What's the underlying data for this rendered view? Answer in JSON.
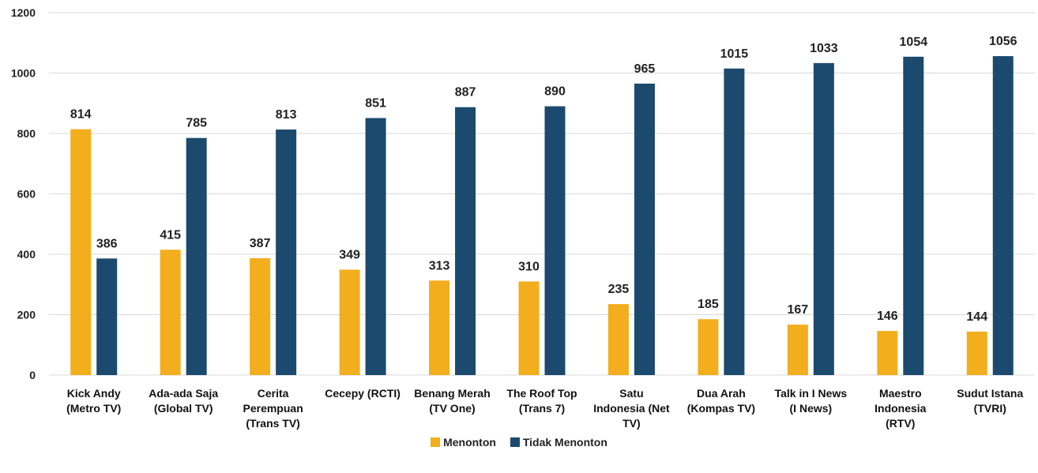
{
  "chart_data": {
    "type": "bar",
    "title": "",
    "xlabel": "",
    "ylabel": "",
    "ylim": [
      0,
      1200
    ],
    "yticks": [
      0,
      200,
      400,
      600,
      800,
      1000,
      1200
    ],
    "grid": true,
    "legend_position": "bottom",
    "categories": [
      [
        "Kick Andy",
        "(Metro TV)"
      ],
      [
        "Ada-ada Saja",
        "(Global TV)"
      ],
      [
        "Cerita",
        "Perempuan",
        "(Trans TV)"
      ],
      [
        "Cecepy (RCTI)"
      ],
      [
        "Benang Merah",
        "(TV One)"
      ],
      [
        "The Roof Top",
        "(Trans 7)"
      ],
      [
        "Satu",
        "Indonesia (Net",
        "TV)"
      ],
      [
        "Dua Arah",
        "(Kompas TV)"
      ],
      [
        "Talk in I News",
        "(I News)"
      ],
      [
        "Maestro",
        "Indonesia",
        "(RTV)"
      ],
      [
        "Sudut Istana",
        "(TVRI)"
      ]
    ],
    "series": [
      {
        "name": "Menonton",
        "color": "#F2AE1C",
        "values": [
          814,
          415,
          387,
          349,
          313,
          310,
          235,
          185,
          167,
          146,
          144
        ]
      },
      {
        "name": "Tidak Menonton",
        "color": "#1B4A6E",
        "values": [
          386,
          785,
          813,
          851,
          887,
          890,
          965,
          1015,
          1033,
          1054,
          1056
        ]
      }
    ]
  },
  "colors": {
    "grid": "#d9d9d9"
  }
}
